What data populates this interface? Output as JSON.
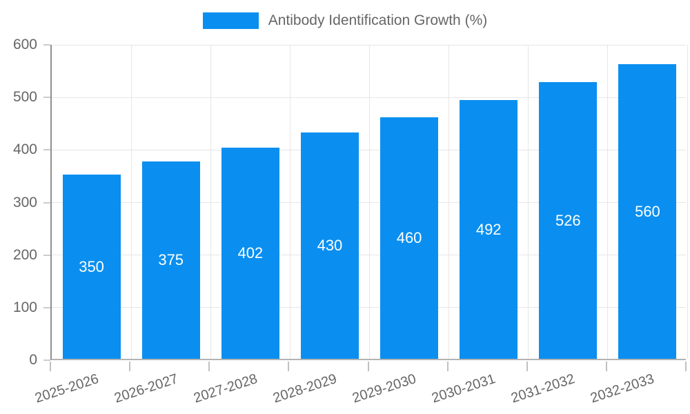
{
  "chart_data": {
    "type": "bar",
    "title": "Antibody Identification Growth (%)",
    "categories": [
      "2025-2026",
      "2026-2027",
      "2027-2028",
      "2028-2029",
      "2029-2030",
      "2030-2031",
      "2031-2032",
      "2032-2033"
    ],
    "values": [
      350,
      375,
      402,
      430,
      460,
      492,
      526,
      560
    ],
    "xlabel": "",
    "ylabel": "",
    "ylim": [
      0,
      600
    ],
    "ytick_step": 100,
    "ytick_labels": [
      "0",
      "100",
      "200",
      "300",
      "400",
      "500",
      "600"
    ],
    "grid": true,
    "legend_position": "top",
    "bar_color": "#0a8ff0",
    "value_label_color": "#ffffff",
    "axis_text_color": "#666666",
    "grid_color": "#e6e6e6"
  }
}
